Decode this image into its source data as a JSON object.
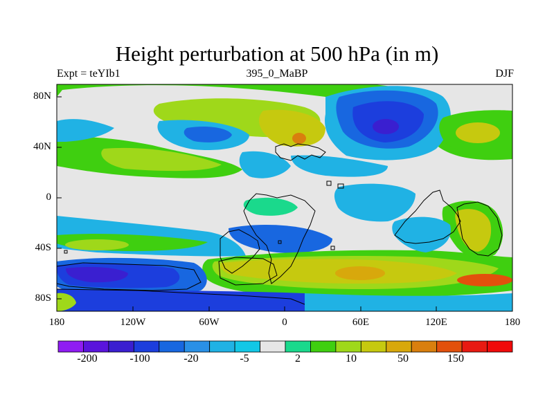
{
  "title": "Height perturbation at 500 hPa (in m)",
  "left_label": "Expt = teYIb1",
  "center_label": "395_0_MaBP",
  "right_label": "DJF",
  "y_ticks": [
    "80N",
    "40N",
    "0",
    "40S",
    "80S"
  ],
  "x_ticks": [
    "180",
    "120W",
    "60W",
    "0",
    "60E",
    "120E",
    "180"
  ],
  "colorbar": {
    "colors": [
      "#8f1cf2",
      "#5a14dc",
      "#3a1fd0",
      "#1c3edd",
      "#1867e0",
      "#2a90e6",
      "#20b2e4",
      "#12c7e6",
      "#e6e6e6",
      "#1ad98c",
      "#3fcf10",
      "#9fd81a",
      "#c6c90f",
      "#d8a80c",
      "#d97f0e",
      "#e2500c",
      "#e81a12",
      "#f00a0a"
    ],
    "labels": [
      "-200",
      "-100",
      "-20",
      "-5",
      "2",
      "10",
      "50",
      "150"
    ]
  },
  "legend_colors": {
    "neutral": "#e6e6e6",
    "strong_negative": "#3a1fd0",
    "moderate_negative": "#1867e0",
    "weak_negative": "#20b2e4",
    "weak_positive": "#3fcf10",
    "moderate_positive": "#c6c90f",
    "strong_positive": "#d97f0e",
    "extreme_positive": "#e2500c",
    "coast": "#000000"
  }
}
